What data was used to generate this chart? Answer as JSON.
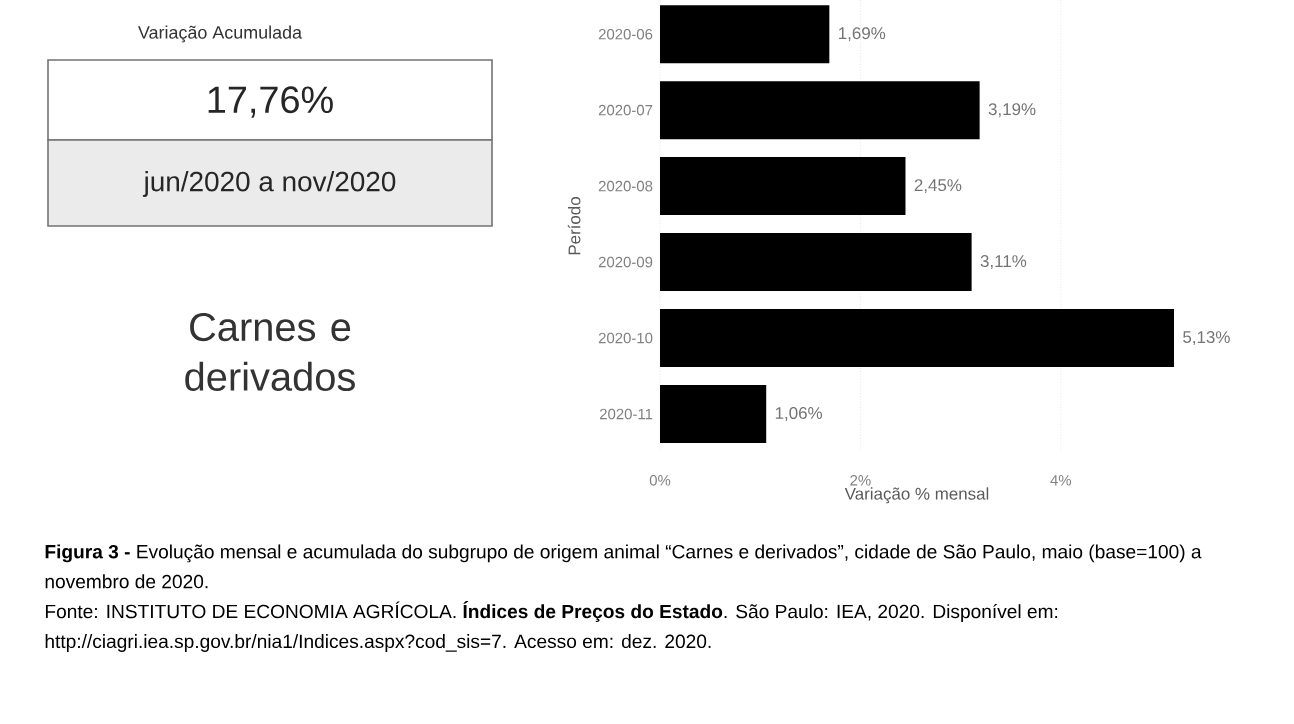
{
  "chart_data": {
    "type": "bar",
    "orientation": "horizontal",
    "title": "Carnes e derivados",
    "xlabel": "Variação % mensal",
    "ylabel": "Período",
    "categories": [
      "2020-06",
      "2020-07",
      "2020-08",
      "2020-09",
      "2020-10",
      "2020-11"
    ],
    "values": [
      1.69,
      3.19,
      2.45,
      3.11,
      5.13,
      1.06
    ],
    "value_labels": [
      "1,69%",
      "3,19%",
      "2,45%",
      "3,11%",
      "5,13%",
      "1,06%"
    ],
    "color": "#000000",
    "xticks": [
      {
        "value": 0,
        "label": "0%"
      },
      {
        "value": 2,
        "label": "2%"
      },
      {
        "value": 4,
        "label": "4%"
      }
    ],
    "xlim": [
      0,
      5.13
    ],
    "grid": "x",
    "annotations": [
      "Variação Acumulada",
      "17,76%",
      "jun/2020 a nov/2020",
      "**Figura 3 -** Evolução mensal e acumulada do subgrupo de origem animal “Carnes e derivados”, cidade de São Paulo, maio (base=100) a novembro de 2020.",
      "Fonte: INSTITUTO DE ECONOMIA AGRÍCOLA. **Índices de Preços do Estado**. São Paulo: IEA, 2020. Disponível em: http://ciagri.iea.sp.gov.br/nia1/Indices.aspx?cod_sis=7. Acesso em: dez. 2020."
    ]
  }
}
